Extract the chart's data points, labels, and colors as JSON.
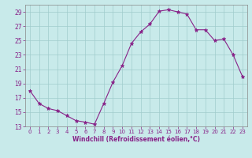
{
  "x": [
    0,
    1,
    2,
    3,
    4,
    5,
    6,
    7,
    8,
    9,
    10,
    11,
    12,
    13,
    14,
    15,
    16,
    17,
    18,
    19,
    20,
    21,
    22,
    23
  ],
  "y": [
    18.0,
    16.2,
    15.5,
    15.2,
    14.5,
    13.8,
    13.6,
    13.3,
    16.2,
    19.2,
    21.5,
    24.6,
    26.2,
    27.3,
    29.1,
    29.3,
    29.0,
    28.7,
    26.5,
    26.5,
    25.0,
    25.2,
    23.0,
    20.0
  ],
  "line_color": "#882288",
  "marker": "*",
  "bg_color": "#c8eaea",
  "grid_color": "#a0cccc",
  "xlabel": "Windchill (Refroidissement éolien,°C)",
  "ylim": [
    13,
    30
  ],
  "xlim_min": -0.5,
  "xlim_max": 23.5,
  "yticks": [
    13,
    15,
    17,
    19,
    21,
    23,
    25,
    27,
    29
  ],
  "xticks": [
    0,
    1,
    2,
    3,
    4,
    5,
    6,
    7,
    8,
    9,
    10,
    11,
    12,
    13,
    14,
    15,
    16,
    17,
    18,
    19,
    20,
    21,
    22,
    23
  ],
  "axis_color": "#555555",
  "font_color": "#882288",
  "tick_fontsize": 5.0,
  "xlabel_fontsize": 5.5
}
